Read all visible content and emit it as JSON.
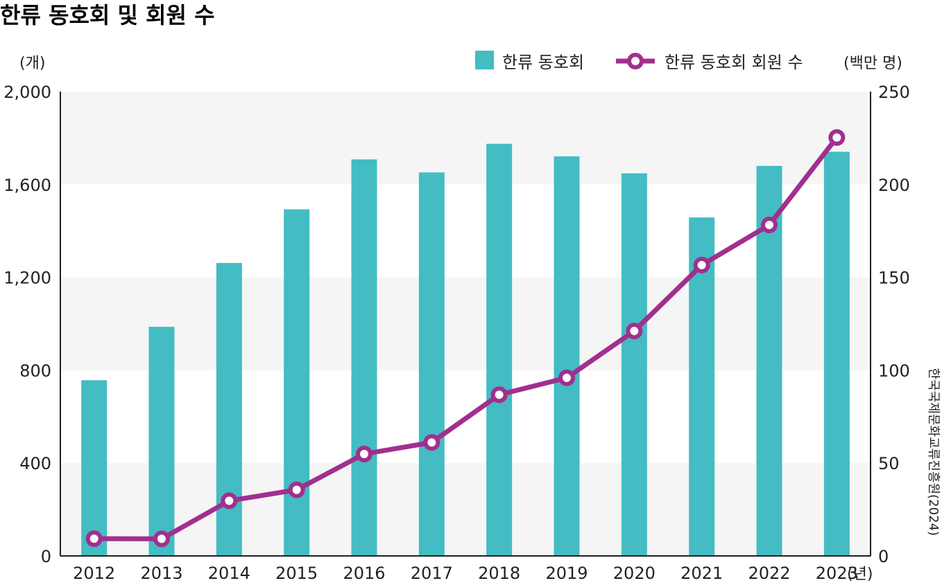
{
  "title": "한류 동호회 및 회원 수",
  "source": "한국국제문화교류진흥원(2024)",
  "colors": {
    "bar": "#43bcc3",
    "line": "#a12f8e",
    "band": "#f5f5f5",
    "axis": "#231f20"
  },
  "chart_data": {
    "type": "bar",
    "categories": [
      "2012",
      "2013",
      "2014",
      "2015",
      "2016",
      "2017",
      "2018",
      "2019",
      "2020",
      "2021",
      "2022",
      "2023"
    ],
    "x_unit": "(년)",
    "y_left": {
      "unit": "(개)",
      "range": [
        0,
        2000
      ],
      "ticks": [
        "0",
        "400",
        "800",
        "1,200",
        "1,600",
        "2,000"
      ]
    },
    "y_right": {
      "unit": "(백만 명)",
      "range": [
        0,
        250
      ],
      "ticks": [
        "0",
        "50",
        "100",
        "150",
        "200",
        "250"
      ]
    },
    "series": [
      {
        "name": "한류 동호회",
        "type": "bar",
        "axis": "left",
        "values": [
          757,
          987,
          1262,
          1493,
          1708,
          1652,
          1775,
          1721,
          1648,
          1458,
          1680,
          1741
        ]
      },
      {
        "name": "한류 동호회 회원 수",
        "type": "line",
        "axis": "right",
        "values": [
          9.3,
          9.2,
          29.7,
          35.6,
          54.9,
          61.1,
          86.8,
          95.9,
          121.1,
          156.6,
          178.2,
          225.3
        ]
      }
    ],
    "legend": "top-right",
    "grid": "alternating horizontal bands"
  }
}
